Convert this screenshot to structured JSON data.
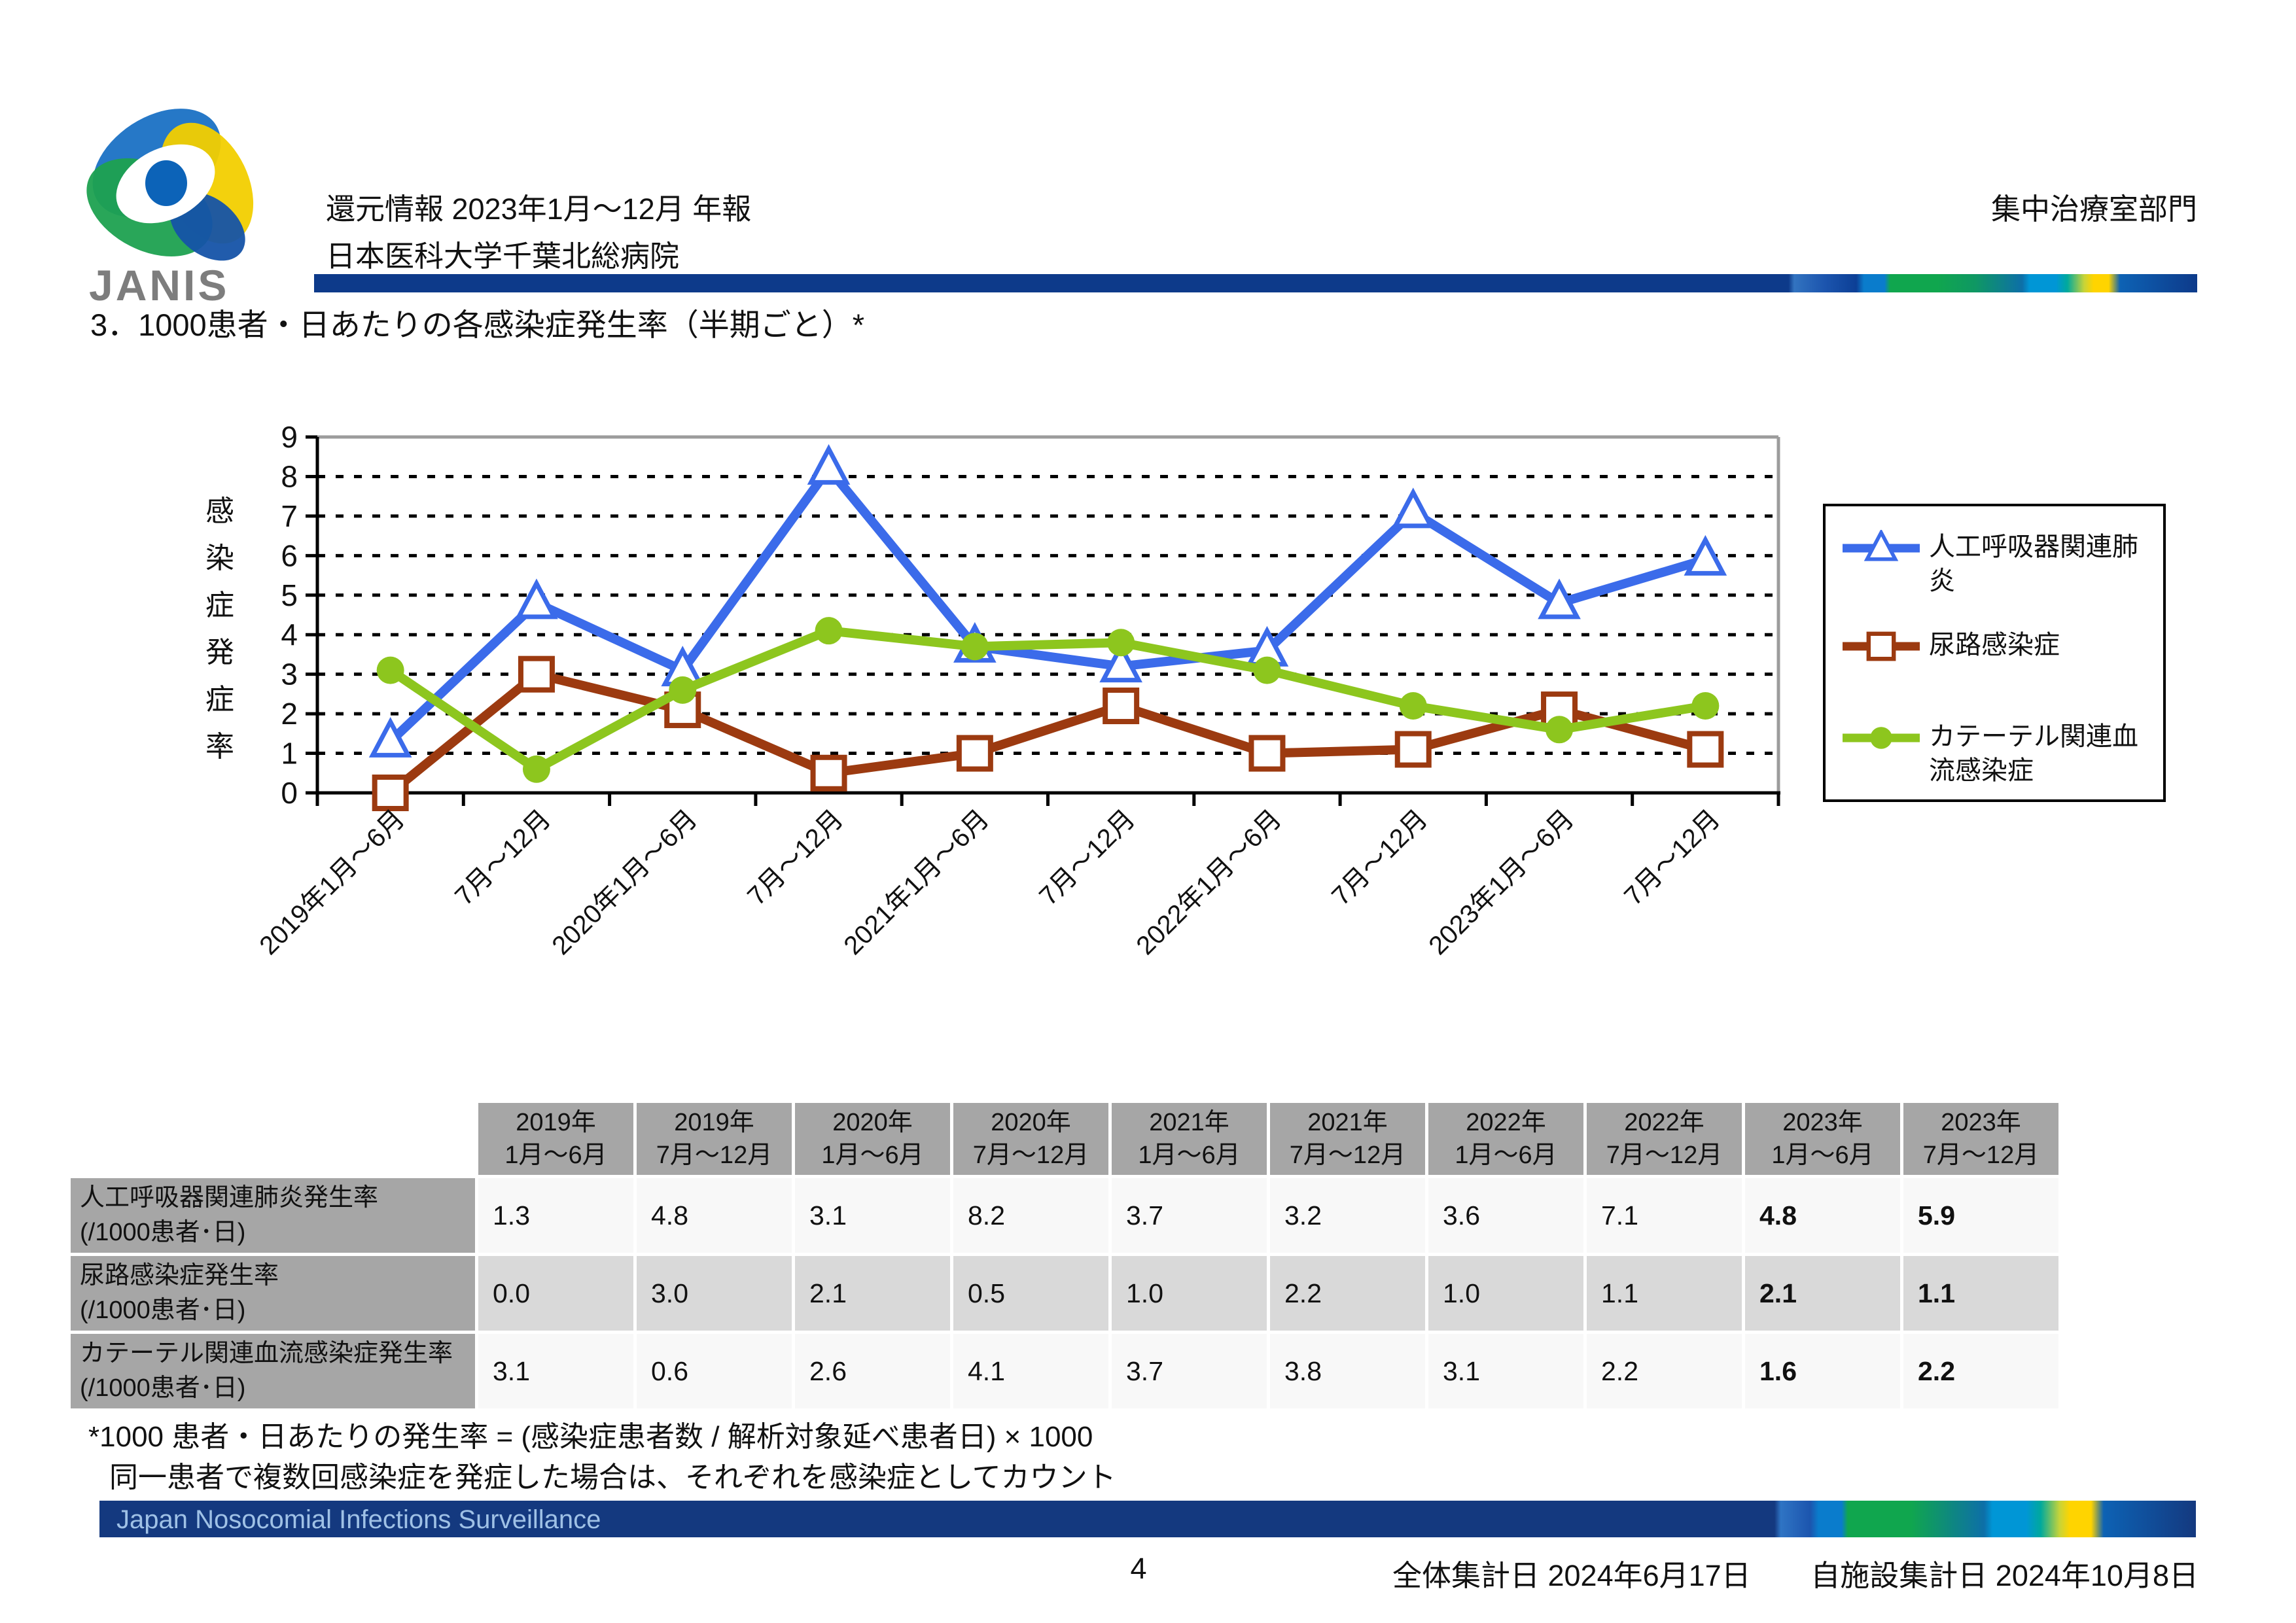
{
  "header": {
    "logo_text": "JANIS",
    "report_title": "還元情報 2023年1月～12月 年報",
    "hospital": "日本医科大学千葉北総病院",
    "department": "集中治療室部門"
  },
  "section_title": "3．1000患者・日あたりの各感染症発生率（半期ごと）*",
  "chart_data": {
    "type": "line",
    "title": "",
    "xlabel": "",
    "ylabel": "感染症発症率",
    "ylim": [
      0,
      9
    ],
    "ytick_interval": 1,
    "grid": "horizontal-dotted",
    "legend_position": "right",
    "categories": [
      "2019年1月～6月",
      "7月～12月",
      "2020年1月～6月",
      "7月～12月",
      "2021年1月～6月",
      "7月～12月",
      "2022年1月～6月",
      "7月～12月",
      "2023年1月～6月",
      "7月～12月"
    ],
    "series": [
      {
        "name": "人工呼吸器関連肺炎",
        "color": "#3b6bea",
        "marker": "triangle",
        "values": [
          1.3,
          4.8,
          3.1,
          8.2,
          3.7,
          3.2,
          3.6,
          7.1,
          4.8,
          5.9
        ]
      },
      {
        "name": "尿路感染症",
        "color": "#9c3a10",
        "marker": "square",
        "values": [
          0.0,
          3.0,
          2.1,
          0.5,
          1.0,
          2.2,
          1.0,
          1.1,
          2.1,
          1.1
        ]
      },
      {
        "name": "カテーテル関連血流感染症",
        "color": "#8dc61e",
        "marker": "circle",
        "values": [
          3.1,
          0.6,
          2.6,
          4.1,
          3.7,
          3.8,
          3.1,
          2.2,
          1.6,
          2.2
        ]
      }
    ]
  },
  "table": {
    "bold_from": 8,
    "col_headers": [
      [
        "2019年",
        "1月～6月"
      ],
      [
        "2019年",
        "7月～12月"
      ],
      [
        "2020年",
        "1月～6月"
      ],
      [
        "2020年",
        "7月～12月"
      ],
      [
        "2021年",
        "1月～6月"
      ],
      [
        "2021年",
        "7月～12月"
      ],
      [
        "2022年",
        "1月～6月"
      ],
      [
        "2022年",
        "7月～12月"
      ],
      [
        "2023年",
        "1月～6月"
      ],
      [
        "2023年",
        "7月～12月"
      ]
    ],
    "rows": [
      {
        "label": "人工呼吸器関連肺炎発生率",
        "sublabel": "(/1000患者･日)",
        "values": [
          "1.3",
          "4.8",
          "3.1",
          "8.2",
          "3.7",
          "3.2",
          "3.6",
          "7.1",
          "4.8",
          "5.9"
        ]
      },
      {
        "label": "尿路感染症発生率",
        "sublabel": "(/1000患者･日)",
        "values": [
          "0.0",
          "3.0",
          "2.1",
          "0.5",
          "1.0",
          "2.2",
          "1.0",
          "1.1",
          "2.1",
          "1.1"
        ]
      },
      {
        "label": "カテーテル関連血流感染症発生率",
        "sublabel": "(/1000患者･日)",
        "values": [
          "3.1",
          "0.6",
          "2.6",
          "4.1",
          "3.7",
          "3.8",
          "3.1",
          "2.2",
          "1.6",
          "2.2"
        ]
      }
    ]
  },
  "footnotes": [
    "*1000 患者・日あたりの発生率 = (感染症患者数 / 解析対象延べ患者日) × 1000",
    "同一患者で複数回感染症を発症した場合は、それぞれを感染症としてカウント"
  ],
  "footer": {
    "band_text": "Japan Nosocomial Infections Surveillance",
    "page_number": "4",
    "aggregate_date": "全体集計日 2024年6月17日",
    "facility_date": "自施設集計日 2024年10月8日"
  },
  "colors": {
    "header_bar_navy": "#0d3a8a",
    "footer_bar_navy": "#14397f",
    "table_header_gray": "#a6a6a6",
    "table_shade_gray": "#d9d9d9",
    "series_vap_blue": "#3b6bea",
    "series_uti_brown": "#9c3a10",
    "series_crbsi_green": "#8dc61e"
  }
}
